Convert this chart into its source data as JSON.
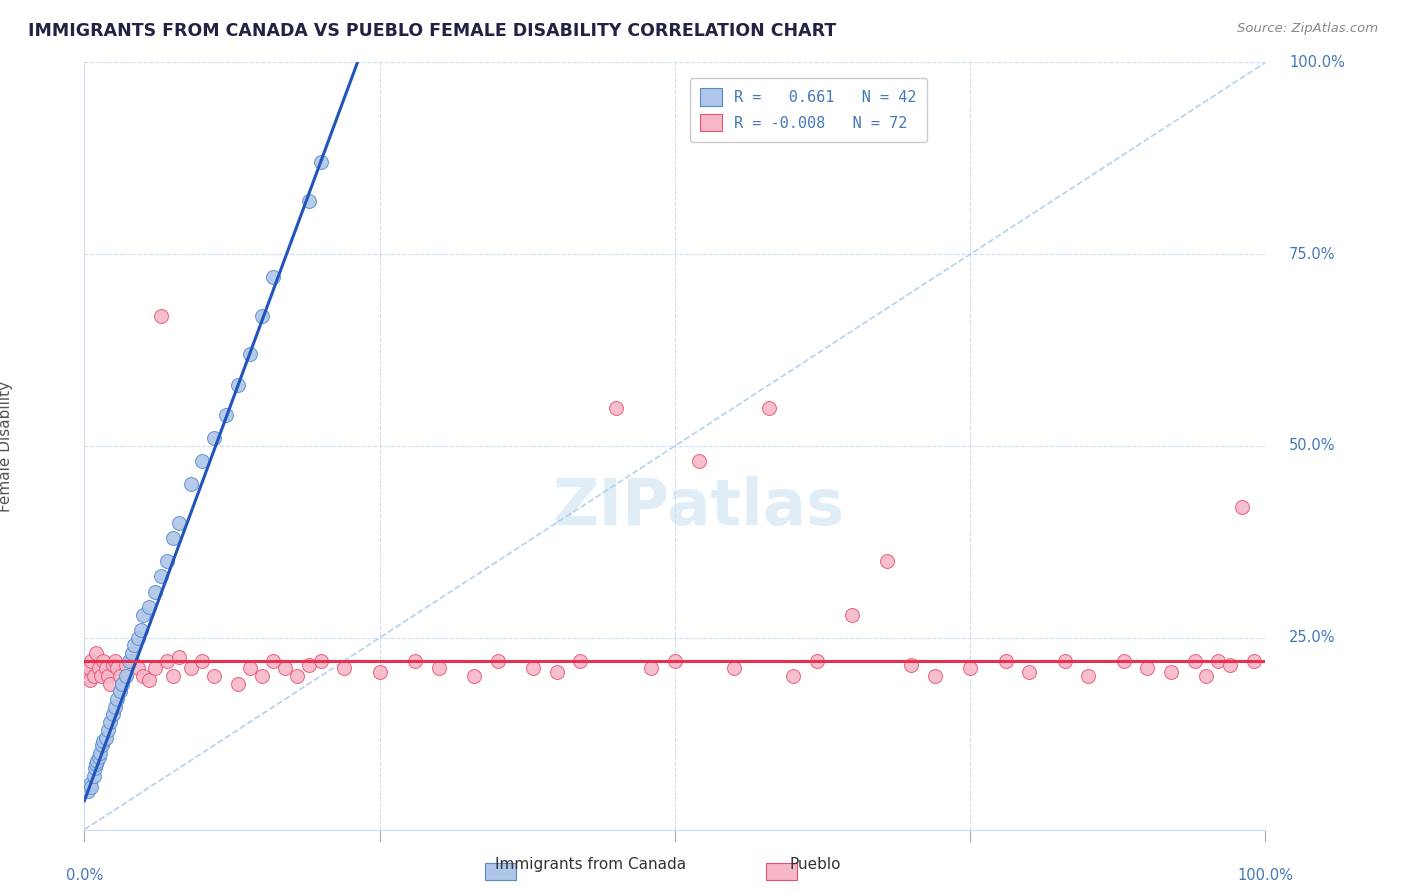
{
  "title": "IMMIGRANTS FROM CANADA VS PUEBLO FEMALE DISABILITY CORRELATION CHART",
  "source_text": "Source: ZipAtlas.com",
  "ylabel": "Female Disability",
  "watermark": "ZIPatlas",
  "blue_r": 0.661,
  "blue_n": 42,
  "pink_r": -0.008,
  "pink_n": 72,
  "legend_r1_label": "R =   0.661   N = 42",
  "legend_r2_label": "R = -0.008   N = 72",
  "blue_fill_color": "#aec6e8",
  "pink_fill_color": "#f5b8c8",
  "blue_edge_color": "#5588cc",
  "pink_edge_color": "#e85070",
  "blue_line_color": "#2255bb",
  "pink_line_color": "#e83050",
  "diag_line_color": "#aaccee",
  "grid_color": "#ccddee",
  "bg_color": "#ffffff",
  "title_color": "#222244",
  "right_label_color": "#4477bb",
  "source_color": "#888888",
  "ylabel_color": "#555555",
  "bottom_legend_color": "#333333",
  "blue_x": [
    0.3,
    0.5,
    0.6,
    0.8,
    0.9,
    1.0,
    1.1,
    1.2,
    1.3,
    1.5,
    1.6,
    1.8,
    2.0,
    2.2,
    2.4,
    2.6,
    2.8,
    3.0,
    3.2,
    3.5,
    3.8,
    4.0,
    4.2,
    4.5,
    4.8,
    5.0,
    5.5,
    6.0,
    6.5,
    7.0,
    7.5,
    8.0,
    9.0,
    10.0,
    11.0,
    12.0,
    13.0,
    14.0,
    15.0,
    16.0,
    19.0,
    20.0
  ],
  "blue_y": [
    5.0,
    6.0,
    5.5,
    7.0,
    8.0,
    8.5,
    9.0,
    9.5,
    10.0,
    11.0,
    11.5,
    12.0,
    13.0,
    14.0,
    15.0,
    16.0,
    17.0,
    18.0,
    19.0,
    20.0,
    22.0,
    23.0,
    24.0,
    25.0,
    26.0,
    28.0,
    29.0,
    31.0,
    33.0,
    35.0,
    38.0,
    40.0,
    45.0,
    48.0,
    51.0,
    54.0,
    58.0,
    62.0,
    67.0,
    72.0,
    82.0,
    87.0
  ],
  "pink_x": [
    0.2,
    0.4,
    0.5,
    0.6,
    0.8,
    1.0,
    1.2,
    1.4,
    1.6,
    1.8,
    2.0,
    2.2,
    2.4,
    2.6,
    2.8,
    3.0,
    3.5,
    4.0,
    4.5,
    5.0,
    5.5,
    6.0,
    6.5,
    7.0,
    7.5,
    8.0,
    9.0,
    10.0,
    11.0,
    13.0,
    14.0,
    15.0,
    16.0,
    17.0,
    18.0,
    19.0,
    20.0,
    22.0,
    25.0,
    28.0,
    30.0,
    33.0,
    35.0,
    38.0,
    40.0,
    42.0,
    45.0,
    48.0,
    50.0,
    52.0,
    55.0,
    58.0,
    60.0,
    62.0,
    65.0,
    68.0,
    70.0,
    72.0,
    75.0,
    78.0,
    80.0,
    83.0,
    85.0,
    88.0,
    90.0,
    92.0,
    94.0,
    95.0,
    96.0,
    97.0,
    98.0,
    99.0
  ],
  "pink_y": [
    20.0,
    21.0,
    19.5,
    22.0,
    20.0,
    23.0,
    21.0,
    20.0,
    22.0,
    21.0,
    20.0,
    19.0,
    21.5,
    22.0,
    21.0,
    20.0,
    21.5,
    22.0,
    21.0,
    20.0,
    19.5,
    21.0,
    67.0,
    22.0,
    20.0,
    22.5,
    21.0,
    22.0,
    20.0,
    19.0,
    21.0,
    20.0,
    22.0,
    21.0,
    20.0,
    21.5,
    22.0,
    21.0,
    20.5,
    22.0,
    21.0,
    20.0,
    22.0,
    21.0,
    20.5,
    22.0,
    55.0,
    21.0,
    22.0,
    48.0,
    21.0,
    55.0,
    20.0,
    22.0,
    28.0,
    35.0,
    21.5,
    20.0,
    21.0,
    22.0,
    20.5,
    22.0,
    20.0,
    22.0,
    21.0,
    20.5,
    22.0,
    20.0,
    22.0,
    21.5,
    42.0,
    22.0
  ]
}
